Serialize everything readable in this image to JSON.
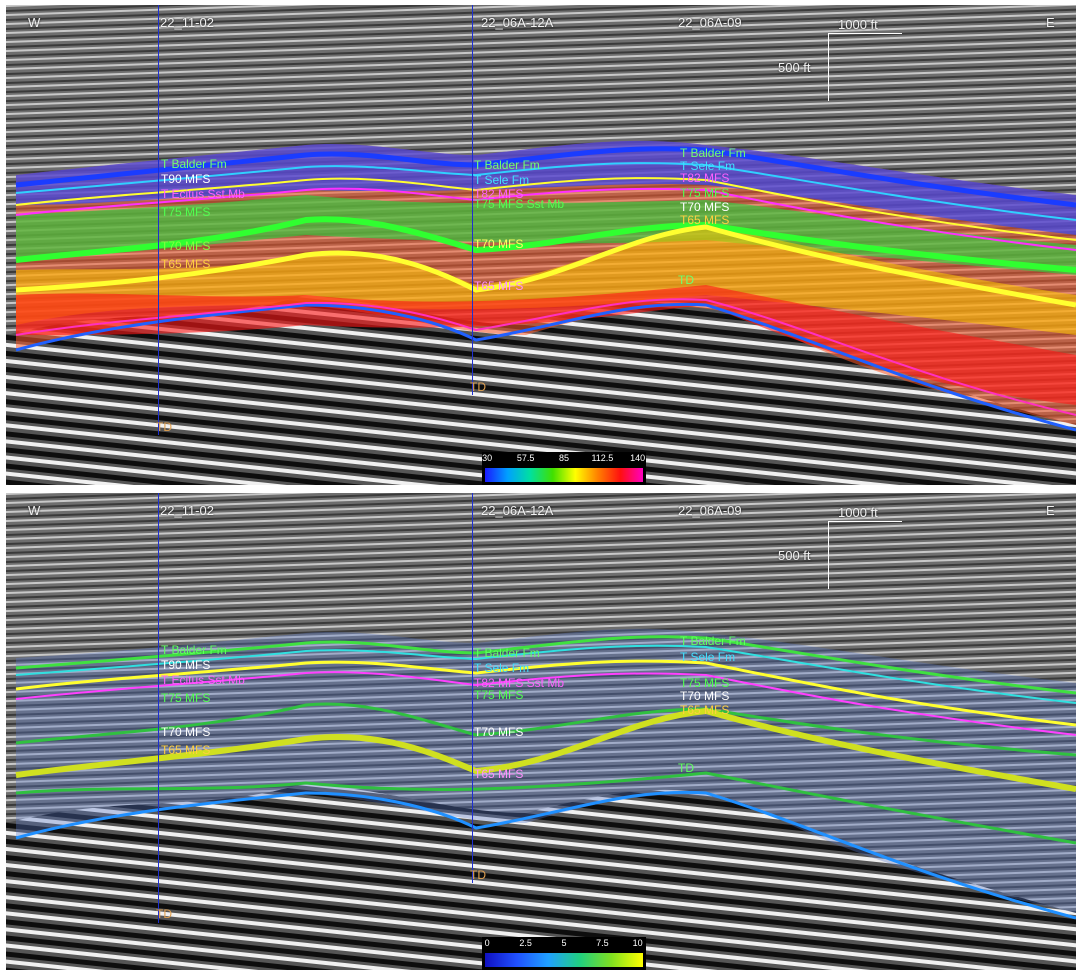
{
  "panels": [
    {
      "id": "top",
      "edge_left": "W",
      "edge_right": "E",
      "wells": [
        "22_11-02",
        "22_06A-12A",
        "22_06A-09"
      ],
      "scale_h_label": "1000 ft",
      "scale_v_label": "500 ft",
      "well1_tops": [
        "T Balder Fm",
        "T90 MFS",
        "T Ecitus Sst Mb",
        "T75 MFS",
        "T70 MFS",
        "T65 MFS",
        "TD"
      ],
      "well2_tops": [
        "T Balder Fm",
        "T Sele Fm",
        "T82 MFS",
        "T75 MFS Sst Mb",
        "T70 MFS",
        "T65 MFS",
        "TD"
      ],
      "well3_tops": [
        "T Balder Fm",
        "T Sele Fm",
        "T82 MFS",
        "T75 MFS",
        "T70 MFS",
        "T65 MFS",
        "TD"
      ],
      "colorbar": {
        "ticks": [
          "30",
          "57.5",
          "85",
          "112.5",
          "140"
        ],
        "colors": [
          "#1a1aff",
          "#00a0ff",
          "#00e0a0",
          "#40e000",
          "#ffff00",
          "#ff8000",
          "#ff1010",
          "#ff00c0"
        ]
      }
    },
    {
      "id": "bottom",
      "edge_left": "W",
      "edge_right": "E",
      "wells": [
        "22_11-02",
        "22_06A-12A",
        "22_06A-09"
      ],
      "scale_h_label": "1000 ft",
      "scale_v_label": "500 ft",
      "well1_tops": [
        "T Balder Fm",
        "T90 MFS",
        "T Ecitus Sst Mb",
        "T75 MFS",
        "T70 MFS",
        "T65 MFS",
        "TD"
      ],
      "well2_tops": [
        "T Balder Fm",
        "T Sele Fm",
        "T82 MFS Sst Mb",
        "T75 MFS",
        "T70 MFS",
        "T65 MFS",
        "TD"
      ],
      "well3_tops": [
        "T Balder Fm",
        "T Sele Fm",
        "T75 MFS",
        "T70 MFS",
        "T65 MFS",
        "TD"
      ],
      "colorbar": {
        "ticks": [
          "0",
          "2.5",
          "5",
          "7.5",
          "10"
        ],
        "colors": [
          "#1010c0",
          "#2050ff",
          "#20a0ff",
          "#20d080",
          "#80e020",
          "#ffff00"
        ]
      }
    }
  ]
}
